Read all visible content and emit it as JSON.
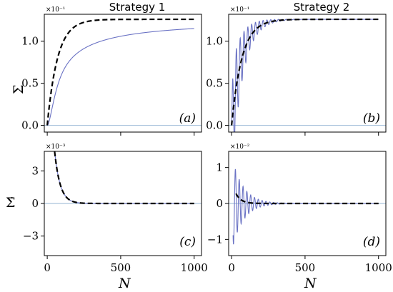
{
  "figure": {
    "ylabel_top": "Σ",
    "ylabel_bottom": "Σ̇",
    "xlabel": "N"
  },
  "chart_data": [
    {
      "type": "line",
      "title": "Strategy 1",
      "panel": "(a)",
      "multiplier": "×10⁻¹",
      "xlim": [
        -20,
        1050
      ],
      "ylim": [
        -0.08,
        1.32
      ],
      "xticks": [
        "",
        "",
        ""
      ],
      "yticks": [
        {
          "v": 0.0,
          "label": "0.0"
        },
        {
          "v": 0.5,
          "label": "0.5"
        },
        {
          "v": 1.0,
          "label": "1.0"
        }
      ],
      "xtick_values": [
        0,
        500,
        1000
      ],
      "colors": {
        "solid": "#6a72c4",
        "dashed": "#000000",
        "zero": "#aac3dc"
      },
      "series": [
        {
          "style": "solid",
          "model": "saturating",
          "x_range": [
            0,
            1000
          ],
          "params": {
            "A": 1.26,
            "tau": 95,
            "a0": 0.65
          }
        },
        {
          "style": "dashed",
          "model": "exp",
          "x_range": [
            0,
            1000
          ],
          "params": {
            "A": 1.26,
            "tau": 70
          }
        }
      ]
    },
    {
      "type": "line",
      "title": "Strategy 2",
      "panel": "(b)",
      "multiplier": "×10⁻¹",
      "xlim": [
        -20,
        1050
      ],
      "ylim": [
        -0.08,
        1.32
      ],
      "xticks": [
        "",
        "",
        ""
      ],
      "yticks": [
        {
          "v": 0.0,
          "label": "0.0"
        },
        {
          "v": 0.5,
          "label": "0.5"
        },
        {
          "v": 1.0,
          "label": "1.0"
        }
      ],
      "xtick_values": [
        0,
        500,
        1000
      ],
      "colors": {
        "solid": "#6a72c4",
        "dashed": "#000000",
        "zero": "#aac3dc"
      },
      "series": [
        {
          "style": "solid",
          "model": "oscillating",
          "x_range": [
            0,
            1000
          ],
          "params": {
            "A": 1.26,
            "tau": 70,
            "B": 1.35,
            "T": 26,
            "tauB": 80
          }
        },
        {
          "style": "dashed",
          "model": "exp",
          "x_range": [
            0,
            1000
          ],
          "params": {
            "A": 1.26,
            "tau": 70
          }
        }
      ]
    },
    {
      "type": "line",
      "panel": "(c)",
      "multiplier": "×10⁻³",
      "xlim": [
        -20,
        1050
      ],
      "ylim": [
        -4.8,
        4.8
      ],
      "xticks": [
        "0",
        "500",
        "1000"
      ],
      "yticks": [
        {
          "v": -3,
          "label": "−3"
        },
        {
          "v": 0,
          "label": "0"
        },
        {
          "v": 3,
          "label": "3"
        }
      ],
      "xtick_values": [
        0,
        500,
        1000
      ],
      "colors": {
        "solid": "#6a72c4",
        "dashed": "#000000",
        "zero": "#aac3dc"
      },
      "series": [
        {
          "style": "solid",
          "model": "decay",
          "x_range": [
            2,
            1000
          ],
          "params": {
            "A": 18,
            "tau": 38
          }
        },
        {
          "style": "dashed",
          "model": "decay",
          "x_range": [
            2,
            1000
          ],
          "params": {
            "A": 18,
            "tau": 38
          }
        }
      ]
    },
    {
      "type": "line",
      "panel": "(d)",
      "multiplier": "×10⁻²",
      "xlim": [
        -20,
        1050
      ],
      "ylim": [
        -1.45,
        1.45
      ],
      "xticks": [
        "0",
        "500",
        "1000"
      ],
      "yticks": [
        {
          "v": -1,
          "label": "−1"
        },
        {
          "v": 0,
          "label": "0"
        },
        {
          "v": 1,
          "label": "1"
        }
      ],
      "xtick_values": [
        0,
        500,
        1000
      ],
      "colors": {
        "solid": "#6a72c4",
        "dashed": "#000000",
        "zero": "#aac3dc"
      },
      "series": [
        {
          "style": "solid",
          "model": "damped_cos",
          "x_range": [
            10,
            1000
          ],
          "params": {
            "A": 1.35,
            "T": 26,
            "tau": 75
          }
        },
        {
          "style": "dashed",
          "model": "decay",
          "x_range": [
            30,
            1000
          ],
          "params": {
            "A": 0.65,
            "tau": 35
          }
        }
      ]
    }
  ]
}
